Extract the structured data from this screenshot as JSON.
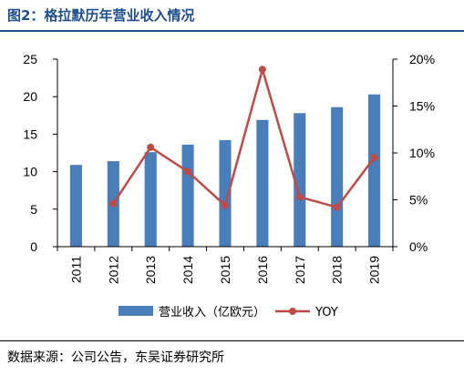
{
  "figure": {
    "title": "图2：格拉默历年营业收入情况",
    "source": "数据来源：公司公告，东吴证券研究所"
  },
  "colors": {
    "bar": "#4a7ebb",
    "line": "#be4b48",
    "rule": "#1f4e8c"
  },
  "chart_data": {
    "type": "bar+line",
    "categories": [
      "2011",
      "2012",
      "2013",
      "2014",
      "2015",
      "2016",
      "2017",
      "2018",
      "2019"
    ],
    "series": [
      {
        "name": "营业收入（亿欧元）",
        "type": "bar",
        "axis": "left",
        "values": [
          10.9,
          11.4,
          12.6,
          13.6,
          14.2,
          16.9,
          17.8,
          18.6,
          20.3
        ]
      },
      {
        "name": "YOY",
        "type": "line",
        "axis": "right",
        "values": [
          null,
          0.046,
          0.106,
          0.08,
          0.044,
          0.189,
          0.053,
          0.042,
          0.095
        ]
      }
    ],
    "y_left": {
      "ylim": [
        0,
        25
      ],
      "ticks": [
        0,
        5,
        10,
        15,
        20,
        25
      ],
      "tick_labels": [
        "0",
        "5",
        "10",
        "15",
        "20",
        "25"
      ]
    },
    "y_right": {
      "ylim": [
        0,
        0.2
      ],
      "ticks": [
        0,
        0.05,
        0.1,
        0.15,
        0.2
      ],
      "tick_labels": [
        "0%",
        "5%",
        "10%",
        "15%",
        "20%"
      ]
    },
    "grid": false,
    "legend_position": "bottom"
  }
}
